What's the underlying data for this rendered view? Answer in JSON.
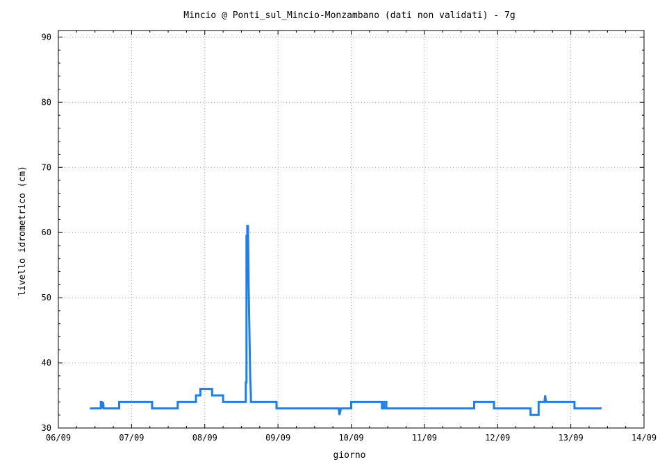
{
  "chart_data": {
    "type": "line",
    "title": "Mincio @ Ponti_sul_Mincio-Monzambano (dati non validati) - 7g",
    "xlabel": "giorno",
    "ylabel": "livello idrometrico (cm)",
    "x_ticks": [
      "06/09",
      "07/09",
      "08/09",
      "09/09",
      "10/09",
      "11/09",
      "12/09",
      "13/09",
      "14/09"
    ],
    "y_ticks": [
      30,
      40,
      50,
      60,
      70,
      80,
      90
    ],
    "xlim": [
      0,
      8
    ],
    "ylim": [
      30,
      91
    ],
    "grid": true,
    "line_color": "#1e7fe8",
    "series": [
      {
        "x": [
          0.43,
          0.58,
          0.58,
          0.59,
          0.6,
          0.61,
          0.62,
          0.62,
          0.83,
          0.83,
          1.28,
          1.28,
          1.63,
          1.63,
          1.88,
          1.88,
          1.94,
          1.94,
          2.1,
          2.1,
          2.25,
          2.25,
          2.55,
          2.56,
          2.56,
          2.57,
          2.57,
          2.58,
          2.58,
          2.59,
          2.6,
          2.6,
          2.62,
          2.62,
          2.63,
          2.63,
          2.98,
          2.98,
          3.83,
          3.84,
          3.86,
          3.86,
          4.0,
          4.0,
          4.42,
          4.42,
          4.45,
          4.45,
          4.48,
          4.48,
          4.55,
          4.55,
          5.68,
          5.68,
          5.95,
          5.95,
          6.45,
          6.45,
          6.56,
          6.56,
          6.64,
          6.65,
          6.66,
          6.68,
          6.69,
          7.05,
          7.05,
          7.42
        ],
        "y": [
          33,
          33,
          34,
          34,
          33,
          34,
          33,
          33,
          33,
          34,
          34,
          33,
          33,
          34,
          34,
          35,
          35,
          36,
          36,
          35,
          35,
          34,
          34,
          34,
          37,
          37,
          59.5,
          59.5,
          61,
          61,
          51,
          51,
          38,
          38,
          35,
          34,
          34,
          33,
          33,
          32,
          33,
          33,
          33,
          34,
          34,
          33,
          33,
          34,
          34,
          33,
          33,
          33,
          33,
          34,
          34,
          33,
          33,
          32,
          32,
          34,
          34,
          35,
          34,
          34,
          34,
          34,
          33,
          33
        ]
      }
    ]
  }
}
